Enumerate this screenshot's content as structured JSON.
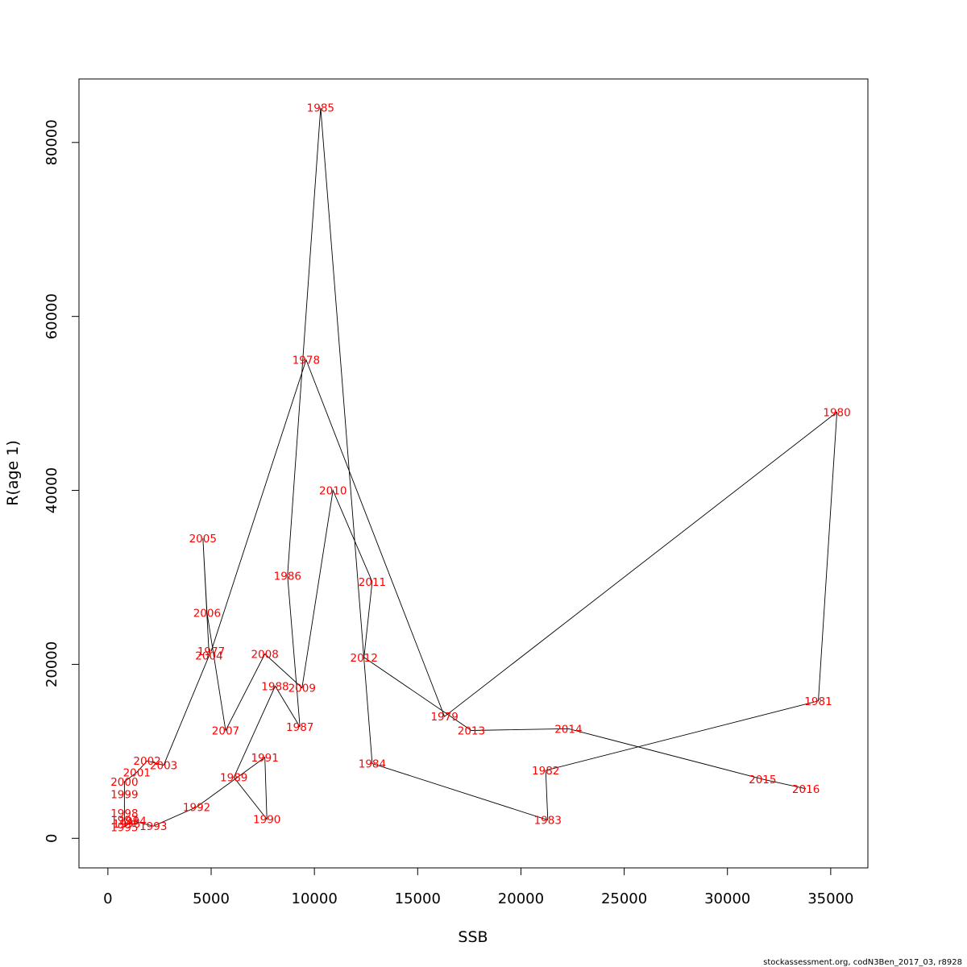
{
  "chart_data": {
    "type": "line",
    "xlabel": "SSB",
    "ylabel": "R(age 1)",
    "xlim": [
      -1400,
      36800
    ],
    "ylim": [
      -3400,
      87300
    ],
    "xticks": [
      0,
      5000,
      10000,
      15000,
      20000,
      25000,
      30000,
      35000
    ],
    "xtick_labels": [
      "0",
      "5000",
      "10000",
      "15000",
      "20000",
      "25000",
      "30000",
      "35000"
    ],
    "yticks": [
      0,
      20000,
      40000,
      60000,
      80000
    ],
    "ytick_labels": [
      "0",
      "20000",
      "40000",
      "60000",
      "80000"
    ],
    "grid": false,
    "line_color": "#000000",
    "label_color": "#ff0000",
    "series": [
      {
        "points": [
          {
            "label": "1977",
            "x": 5000,
            "y": 21500
          },
          {
            "label": "1978",
            "x": 9600,
            "y": 55000
          },
          {
            "label": "1979",
            "x": 16300,
            "y": 14000
          },
          {
            "label": "1980",
            "x": 35300,
            "y": 49000
          },
          {
            "label": "1981",
            "x": 34400,
            "y": 15800
          },
          {
            "label": "1982",
            "x": 21200,
            "y": 7800
          },
          {
            "label": "1983",
            "x": 21300,
            "y": 2100
          },
          {
            "label": "1984",
            "x": 12800,
            "y": 8600
          },
          {
            "label": "1985",
            "x": 10300,
            "y": 84000
          },
          {
            "label": "1986",
            "x": 8700,
            "y": 30200
          },
          {
            "label": "1987",
            "x": 9300,
            "y": 12800
          },
          {
            "label": "1988",
            "x": 8100,
            "y": 17500
          },
          {
            "label": "1989",
            "x": 6100,
            "y": 7000
          },
          {
            "label": "1990",
            "x": 7700,
            "y": 2200
          },
          {
            "label": "1991",
            "x": 7600,
            "y": 9300
          },
          {
            "label": "1992",
            "x": 4300,
            "y": 3600
          },
          {
            "label": "1993",
            "x": 2200,
            "y": 1400
          },
          {
            "label": "1994",
            "x": 1200,
            "y": 2000
          },
          {
            "label": "1995",
            "x": 800,
            "y": 1300
          },
          {
            "label": "1996",
            "x": 900,
            "y": 1700
          },
          {
            "label": "1997",
            "x": 800,
            "y": 2100
          },
          {
            "label": "1998",
            "x": 800,
            "y": 2900
          },
          {
            "label": "1999",
            "x": 800,
            "y": 5100
          },
          {
            "label": "2000",
            "x": 800,
            "y": 6500
          },
          {
            "label": "2001",
            "x": 1400,
            "y": 7600
          },
          {
            "label": "2002",
            "x": 1900,
            "y": 8900
          },
          {
            "label": "2003",
            "x": 2700,
            "y": 8400
          },
          {
            "label": "2004",
            "x": 4900,
            "y": 21000
          },
          {
            "label": "2005",
            "x": 4600,
            "y": 34500
          },
          {
            "label": "2006",
            "x": 4800,
            "y": 25900
          },
          {
            "label": "2007",
            "x": 5700,
            "y": 12400
          },
          {
            "label": "2008",
            "x": 7600,
            "y": 21200
          },
          {
            "label": "2009",
            "x": 9400,
            "y": 17300
          },
          {
            "label": "2010",
            "x": 10900,
            "y": 40000
          },
          {
            "label": "2011",
            "x": 12800,
            "y": 29500
          },
          {
            "label": "2012",
            "x": 12400,
            "y": 20800
          },
          {
            "label": "2013",
            "x": 17600,
            "y": 12400
          },
          {
            "label": "2014",
            "x": 22300,
            "y": 12600
          },
          {
            "label": "2015",
            "x": 31700,
            "y": 6800
          },
          {
            "label": "2016",
            "x": 33800,
            "y": 5700
          }
        ]
      }
    ]
  },
  "footer_text": "stockassessment.org, codN3Ben_2017_03, r8928"
}
